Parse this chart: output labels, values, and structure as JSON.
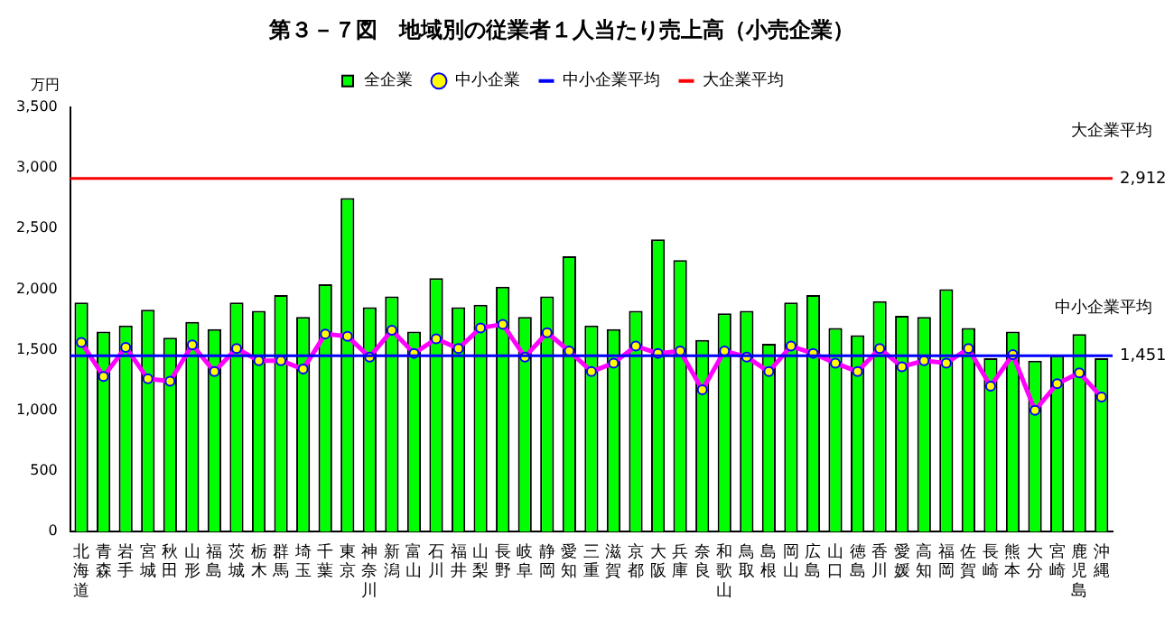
{
  "chart_data": {
    "type": "bar",
    "title": "第３－７図　地域別の従業者１人当たり売上高（小売企業）",
    "ylabel": "万円",
    "categories": [
      "北海道",
      "青森",
      "岩手",
      "宮城",
      "秋田",
      "山形",
      "福島",
      "茨城",
      "栃木",
      "群馬",
      "埼玉",
      "千葉",
      "東京",
      "神奈川",
      "新潟",
      "富山",
      "石川",
      "福井",
      "山梨",
      "長野",
      "岐阜",
      "静岡",
      "愛知",
      "三重",
      "滋賀",
      "京都",
      "大阪",
      "兵庫",
      "奈良",
      "和歌山",
      "鳥取",
      "島根",
      "岡山",
      "広島",
      "山口",
      "徳島",
      "香川",
      "愛媛",
      "高知",
      "福岡",
      "佐賀",
      "長崎",
      "熊本",
      "大分",
      "宮崎",
      "鹿児島",
      "沖縄"
    ],
    "series": [
      {
        "name": "全企業",
        "type": "bar",
        "color": "#00ff00",
        "values": [
          1890,
          1650,
          1700,
          1830,
          1600,
          1730,
          1670,
          1890,
          1820,
          1950,
          1770,
          2040,
          2750,
          1850,
          1940,
          1650,
          2090,
          1850,
          1870,
          2020,
          1770,
          1940,
          2270,
          1700,
          1670,
          1820,
          2410,
          2240,
          1580,
          1800,
          1820,
          1550,
          1890,
          1950,
          1680,
          1620,
          1900,
          1780,
          1770,
          2000,
          1680,
          1430,
          1650,
          1410,
          1450,
          1630,
          1430
        ]
      },
      {
        "name": "中小企業",
        "type": "line",
        "color": "#ff00ff",
        "marker": "circle",
        "values": [
          1560,
          1280,
          1520,
          1260,
          1240,
          1540,
          1320,
          1510,
          1410,
          1410,
          1340,
          1630,
          1610,
          1440,
          1660,
          1470,
          1590,
          1510,
          1680,
          1710,
          1440,
          1640,
          1490,
          1320,
          1390,
          1530,
          1470,
          1490,
          1170,
          1490,
          1440,
          1320,
          1530,
          1470,
          1390,
          1320,
          1510,
          1360,
          1410,
          1390,
          1510,
          1200,
          1460,
          1000,
          1220,
          1310,
          1110
        ]
      }
    ],
    "ref_lines": [
      {
        "axis": "y",
        "value": 1451,
        "label": "中小企業平均",
        "color": "#0000ff"
      },
      {
        "axis": "y",
        "value": 2912,
        "label": "大企業平均",
        "color": "#ff0000"
      }
    ],
    "annotations": [
      "1,451",
      "2,912"
    ],
    "ylim": [
      0,
      3500
    ],
    "yticks": [
      0,
      500,
      {
        "value": 1000,
        "label": "1,000"
      },
      {
        "value": 1500,
        "label": "1,500"
      },
      {
        "value": 2000,
        "label": "2,000"
      },
      {
        "value": 2500,
        "label": "2,500"
      },
      {
        "value": 3000,
        "label": "3,000"
      },
      {
        "value": 3500,
        "label": "3,500"
      }
    ],
    "grid": false,
    "legend": "top"
  }
}
